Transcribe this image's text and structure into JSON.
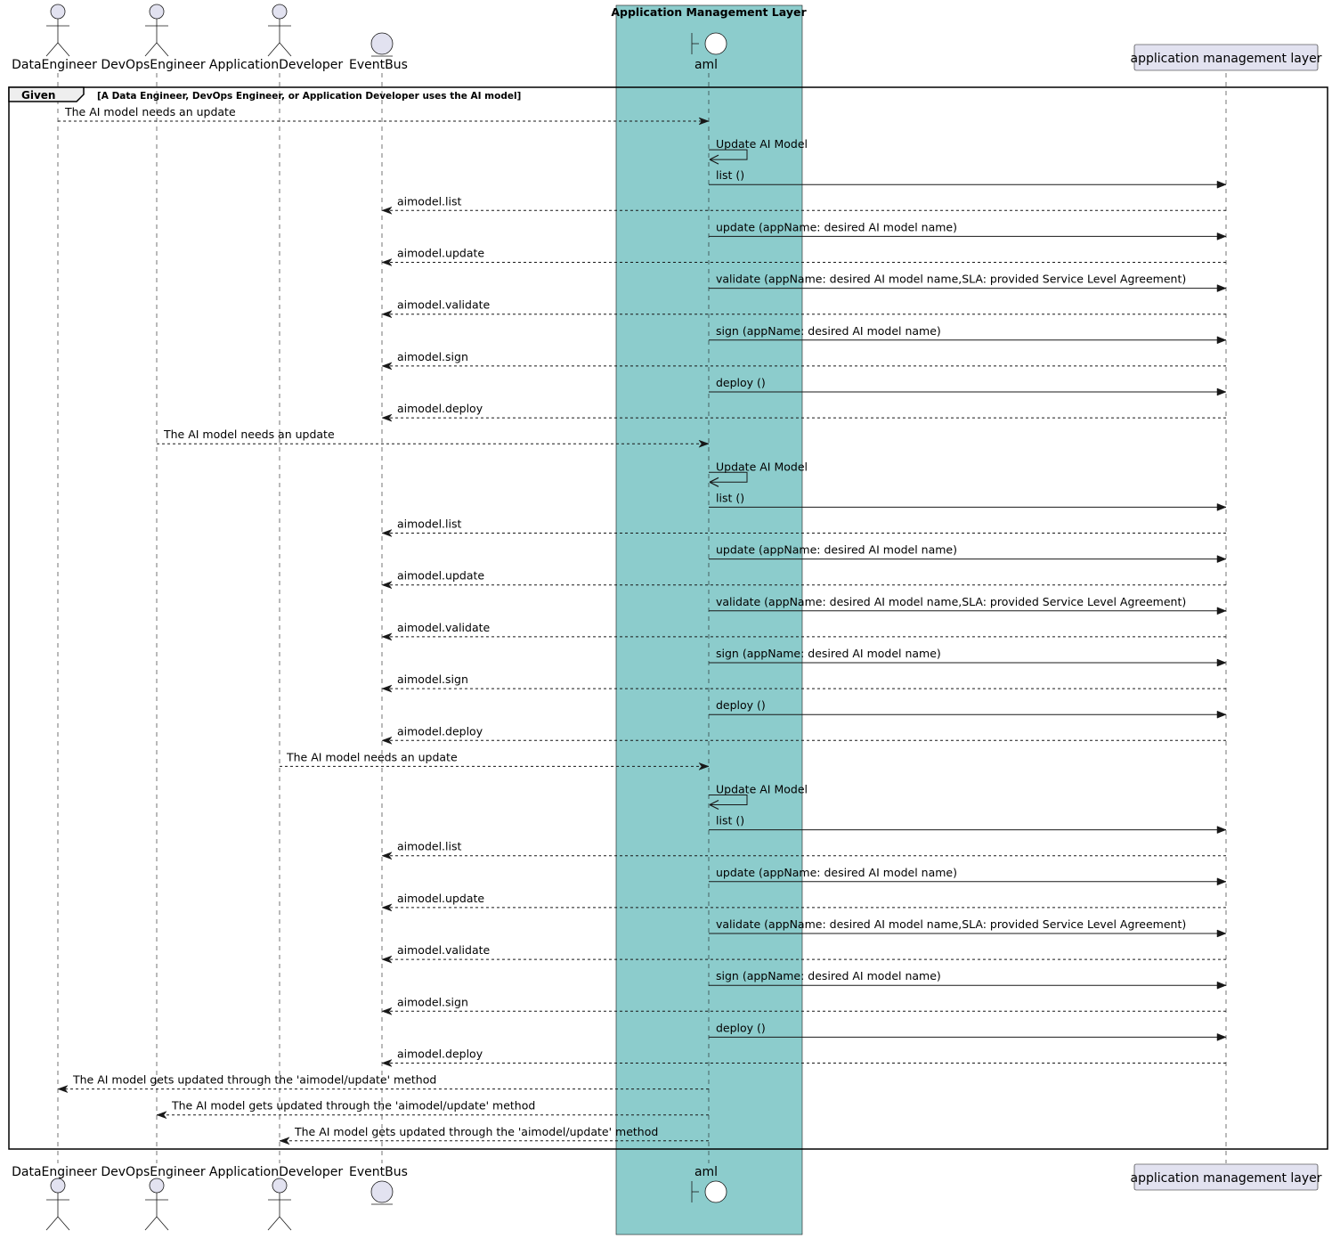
{
  "colors": {
    "box_fill": "#8ccccc",
    "participant_fill": "#e2e2f0",
    "participant_stroke": "#181818",
    "line": "#181818"
  },
  "box": {
    "title": "Application Management Layer"
  },
  "participants": [
    {
      "id": "de",
      "label": "DataEngineer",
      "kind": "actor"
    },
    {
      "id": "dev",
      "label": "DevOpsEngineer",
      "kind": "actor"
    },
    {
      "id": "app",
      "label": "ApplicationDeveloper",
      "kind": "actor"
    },
    {
      "id": "bus",
      "label": "EventBus",
      "kind": "entity"
    },
    {
      "id": "aml",
      "label": "aml",
      "kind": "boundary"
    },
    {
      "id": "layer",
      "label": "application management layer",
      "kind": "participant"
    }
  ],
  "fragment": {
    "tag": "Given",
    "condition": "[A Data Engineer, DevOps Engineer, or Application Developer uses the AI model]"
  },
  "messages": [
    {
      "from": "de",
      "to": "aml",
      "label": "The AI model needs an update",
      "style": "dashed"
    },
    {
      "from": "aml",
      "to": "aml",
      "label": "Update AI Model",
      "style": "solid"
    },
    {
      "from": "aml",
      "to": "layer",
      "label": "list ()",
      "style": "solid"
    },
    {
      "from": "layer",
      "to": "bus",
      "label": "aimodel.list",
      "style": "dashed"
    },
    {
      "from": "aml",
      "to": "layer",
      "label": "update (appName: desired AI model name)",
      "style": "solid"
    },
    {
      "from": "layer",
      "to": "bus",
      "label": "aimodel.update",
      "style": "dashed"
    },
    {
      "from": "aml",
      "to": "layer",
      "label": "validate (appName: desired AI model name,SLA: provided Service Level Agreement)",
      "style": "solid"
    },
    {
      "from": "layer",
      "to": "bus",
      "label": "aimodel.validate",
      "style": "dashed"
    },
    {
      "from": "aml",
      "to": "layer",
      "label": "sign (appName: desired AI model name)",
      "style": "solid"
    },
    {
      "from": "layer",
      "to": "bus",
      "label": "aimodel.sign",
      "style": "dashed"
    },
    {
      "from": "aml",
      "to": "layer",
      "label": "deploy ()",
      "style": "solid"
    },
    {
      "from": "layer",
      "to": "bus",
      "label": "aimodel.deploy",
      "style": "dashed"
    },
    {
      "from": "dev",
      "to": "aml",
      "label": "The AI model needs an update",
      "style": "dashed"
    },
    {
      "from": "aml",
      "to": "aml",
      "label": "Update AI Model",
      "style": "solid"
    },
    {
      "from": "aml",
      "to": "layer",
      "label": "list ()",
      "style": "solid"
    },
    {
      "from": "layer",
      "to": "bus",
      "label": "aimodel.list",
      "style": "dashed"
    },
    {
      "from": "aml",
      "to": "layer",
      "label": "update (appName: desired AI model name)",
      "style": "solid"
    },
    {
      "from": "layer",
      "to": "bus",
      "label": "aimodel.update",
      "style": "dashed"
    },
    {
      "from": "aml",
      "to": "layer",
      "label": "validate (appName: desired AI model name,SLA: provided Service Level Agreement)",
      "style": "solid"
    },
    {
      "from": "layer",
      "to": "bus",
      "label": "aimodel.validate",
      "style": "dashed"
    },
    {
      "from": "aml",
      "to": "layer",
      "label": "sign (appName: desired AI model name)",
      "style": "solid"
    },
    {
      "from": "layer",
      "to": "bus",
      "label": "aimodel.sign",
      "style": "dashed"
    },
    {
      "from": "aml",
      "to": "layer",
      "label": "deploy ()",
      "style": "solid"
    },
    {
      "from": "layer",
      "to": "bus",
      "label": "aimodel.deploy",
      "style": "dashed"
    },
    {
      "from": "app",
      "to": "aml",
      "label": "The AI model needs an update",
      "style": "dashed"
    },
    {
      "from": "aml",
      "to": "aml",
      "label": "Update AI Model",
      "style": "solid"
    },
    {
      "from": "aml",
      "to": "layer",
      "label": "list ()",
      "style": "solid"
    },
    {
      "from": "layer",
      "to": "bus",
      "label": "aimodel.list",
      "style": "dashed"
    },
    {
      "from": "aml",
      "to": "layer",
      "label": "update (appName: desired AI model name)",
      "style": "solid"
    },
    {
      "from": "layer",
      "to": "bus",
      "label": "aimodel.update",
      "style": "dashed"
    },
    {
      "from": "aml",
      "to": "layer",
      "label": "validate (appName: desired AI model name,SLA: provided Service Level Agreement)",
      "style": "solid"
    },
    {
      "from": "layer",
      "to": "bus",
      "label": "aimodel.validate",
      "style": "dashed"
    },
    {
      "from": "aml",
      "to": "layer",
      "label": "sign (appName: desired AI model name)",
      "style": "solid"
    },
    {
      "from": "layer",
      "to": "bus",
      "label": "aimodel.sign",
      "style": "dashed"
    },
    {
      "from": "aml",
      "to": "layer",
      "label": "deploy ()",
      "style": "solid"
    },
    {
      "from": "layer",
      "to": "bus",
      "label": "aimodel.deploy",
      "style": "dashed"
    },
    {
      "from": "aml",
      "to": "de",
      "label": "The AI model gets updated through the 'aimodel/update' method",
      "style": "dashed"
    },
    {
      "from": "aml",
      "to": "dev",
      "label": "The AI model gets updated through the 'aimodel/update' method",
      "style": "dashed"
    },
    {
      "from": "aml",
      "to": "app",
      "label": "The AI model gets updated through the 'aimodel/update' method",
      "style": "dashed"
    }
  ]
}
